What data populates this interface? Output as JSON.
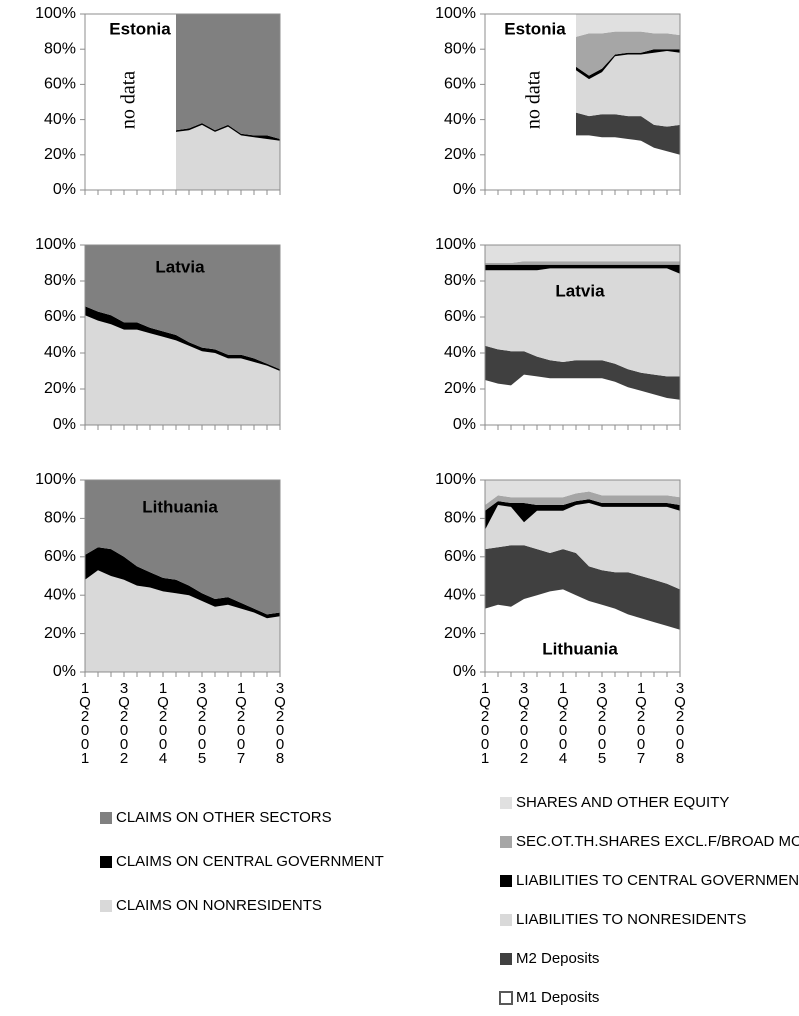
{
  "chart_data": [
    {
      "type": "area",
      "stacked": true,
      "categories": [
        "1Q2001",
        null,
        null,
        "3Q2002",
        null,
        null,
        "1Q2004",
        null,
        null,
        "3Q2005",
        null,
        null,
        "1Q2007",
        null,
        null,
        "3Q2008"
      ],
      "ylim": [
        0,
        100
      ],
      "yticks": [
        {
          "value": 0,
          "label": "0%"
        },
        {
          "value": 20,
          "label": "20%"
        },
        {
          "value": 40,
          "label": "40%"
        },
        {
          "value": 60,
          "label": "60%"
        },
        {
          "value": 80,
          "label": "80%"
        },
        {
          "value": 100,
          "label": "100%"
        }
      ],
      "series": [
        {
          "name": "CLAIMS ON NONRESIDENTS",
          "color": "#d9d9d9"
        },
        {
          "name": "CLAIMS ON CENTRAL GOVERNMENT",
          "color": "#000000"
        },
        {
          "name": "CLAIMS ON OTHER SECTORS",
          "color": "#808080"
        }
      ],
      "panels": [
        {
          "title": "Estonia",
          "annotation": "no data",
          "series_values": [
            [
              null,
              null,
              null,
              null,
              null,
              null,
              null,
              33,
              34,
              37,
              33,
              36,
              31,
              30,
              29,
              28
            ],
            [
              null,
              null,
              null,
              null,
              null,
              null,
              null,
              1,
              1,
              1,
              1,
              1,
              1,
              1,
              2,
              1
            ],
            [
              null,
              null,
              null,
              null,
              null,
              null,
              null,
              66,
              65,
              62,
              66,
              63,
              68,
              69,
              69,
              71
            ]
          ]
        },
        {
          "title": "Latvia",
          "series_values": [
            [
              61,
              58,
              56,
              53,
              53,
              51,
              49,
              47,
              44,
              41,
              40,
              37,
              37,
              35,
              33,
              30
            ],
            [
              5,
              5,
              5,
              4,
              4,
              3,
              3,
              3,
              2,
              2,
              2,
              2,
              2,
              2,
              1,
              1
            ],
            [
              34,
              37,
              39,
              43,
              43,
              46,
              48,
              50,
              54,
              57,
              58,
              61,
              61,
              63,
              66,
              69
            ]
          ]
        },
        {
          "title": "Lithuania",
          "series_values": [
            [
              48,
              53,
              50,
              48,
              45,
              44,
              42,
              41,
              40,
              37,
              34,
              35,
              33,
              31,
              28,
              29
            ],
            [
              13,
              12,
              14,
              12,
              10,
              8,
              7,
              7,
              5,
              4,
              4,
              4,
              3,
              2,
              2,
              2
            ],
            [
              39,
              35,
              36,
              40,
              45,
              48,
              51,
              52,
              55,
              59,
              62,
              61,
              64,
              67,
              70,
              69
            ]
          ]
        }
      ]
    },
    {
      "type": "area",
      "stacked": true,
      "categories": [
        "1Q2001",
        null,
        null,
        "3Q2002",
        null,
        null,
        "1Q2004",
        null,
        null,
        "3Q2005",
        null,
        null,
        "1Q2007",
        null,
        null,
        "3Q2008"
      ],
      "ylim": [
        0,
        100
      ],
      "yticks": [
        {
          "value": 0,
          "label": "0%"
        },
        {
          "value": 20,
          "label": "20%"
        },
        {
          "value": 40,
          "label": "40%"
        },
        {
          "value": 60,
          "label": "60%"
        },
        {
          "value": 80,
          "label": "80%"
        },
        {
          "value": 100,
          "label": "100%"
        }
      ],
      "series": [
        {
          "name": "M1 Deposits",
          "color": "#ffffff"
        },
        {
          "name": "M2 Deposits",
          "color": "#404040"
        },
        {
          "name": "LIABILITIES TO NONRESIDENTS",
          "color": "#d9d9d9"
        },
        {
          "name": "LIABILITIES TO CENTRAL GOVERNMENT",
          "color": "#000000"
        },
        {
          "name": "SEC.OT.TH.SHARES EXCL.F/BROAD MONEY",
          "color": "#a6a6a6"
        },
        {
          "name": "SHARES AND OTHER EQUITY",
          "color": "#e0e0e0"
        }
      ],
      "panels": [
        {
          "title": "Estonia",
          "annotation": "no data",
          "series_values": [
            [
              null,
              null,
              null,
              null,
              null,
              null,
              null,
              31,
              31,
              30,
              30,
              29,
              28,
              24,
              22,
              20
            ],
            [
              null,
              null,
              null,
              null,
              null,
              null,
              null,
              13,
              11,
              13,
              13,
              13,
              14,
              13,
              14,
              17
            ],
            [
              null,
              null,
              null,
              null,
              null,
              null,
              null,
              24,
              21,
              24,
              33,
              35,
              35,
              41,
              43,
              41
            ],
            [
              null,
              null,
              null,
              null,
              null,
              null,
              null,
              2,
              2,
              2,
              1,
              1,
              1,
              2,
              1,
              2
            ],
            [
              null,
              null,
              null,
              null,
              null,
              null,
              null,
              17,
              24,
              20,
              13,
              12,
              12,
              9,
              9,
              8
            ],
            [
              null,
              null,
              null,
              null,
              null,
              null,
              null,
              13,
              11,
              11,
              10,
              10,
              10,
              11,
              11,
              12
            ]
          ]
        },
        {
          "title": "Latvia",
          "series_values": [
            [
              25,
              23,
              22,
              28,
              27,
              26,
              26,
              26,
              26,
              26,
              24,
              21,
              19,
              17,
              15,
              14
            ],
            [
              19,
              19,
              19,
              13,
              11,
              10,
              9,
              10,
              10,
              10,
              10,
              10,
              10,
              11,
              12,
              13
            ],
            [
              42,
              44,
              45,
              45,
              48,
              51,
              52,
              51,
              51,
              51,
              53,
              56,
              58,
              59,
              60,
              57
            ],
            [
              3,
              3,
              3,
              3,
              3,
              2,
              2,
              2,
              2,
              2,
              2,
              2,
              2,
              2,
              2,
              5
            ],
            [
              1,
              1,
              1,
              2,
              2,
              2,
              2,
              2,
              2,
              2,
              2,
              2,
              2,
              2,
              2,
              2
            ],
            [
              10,
              10,
              10,
              9,
              9,
              9,
              9,
              9,
              9,
              9,
              9,
              9,
              9,
              9,
              9,
              9
            ]
          ]
        },
        {
          "title": "Lithuania",
          "series_values": [
            [
              33,
              35,
              34,
              38,
              40,
              42,
              43,
              40,
              37,
              35,
              33,
              30,
              28,
              26,
              24,
              22
            ],
            [
              31,
              30,
              32,
              28,
              24,
              20,
              21,
              22,
              18,
              18,
              19,
              22,
              22,
              22,
              22,
              21
            ],
            [
              10,
              22,
              20,
              12,
              20,
              22,
              20,
              25,
              33,
              33,
              34,
              34,
              36,
              38,
              40,
              41
            ],
            [
              10,
              2,
              2,
              10,
              3,
              3,
              3,
              2,
              2,
              2,
              2,
              2,
              2,
              2,
              2,
              3
            ],
            [
              3,
              3,
              3,
              3,
              4,
              4,
              4,
              4,
              4,
              4,
              4,
              4,
              4,
              4,
              4,
              4
            ],
            [
              13,
              8,
              9,
              9,
              9,
              9,
              9,
              7,
              6,
              8,
              8,
              8,
              8,
              8,
              8,
              9
            ]
          ]
        }
      ]
    }
  ]
}
